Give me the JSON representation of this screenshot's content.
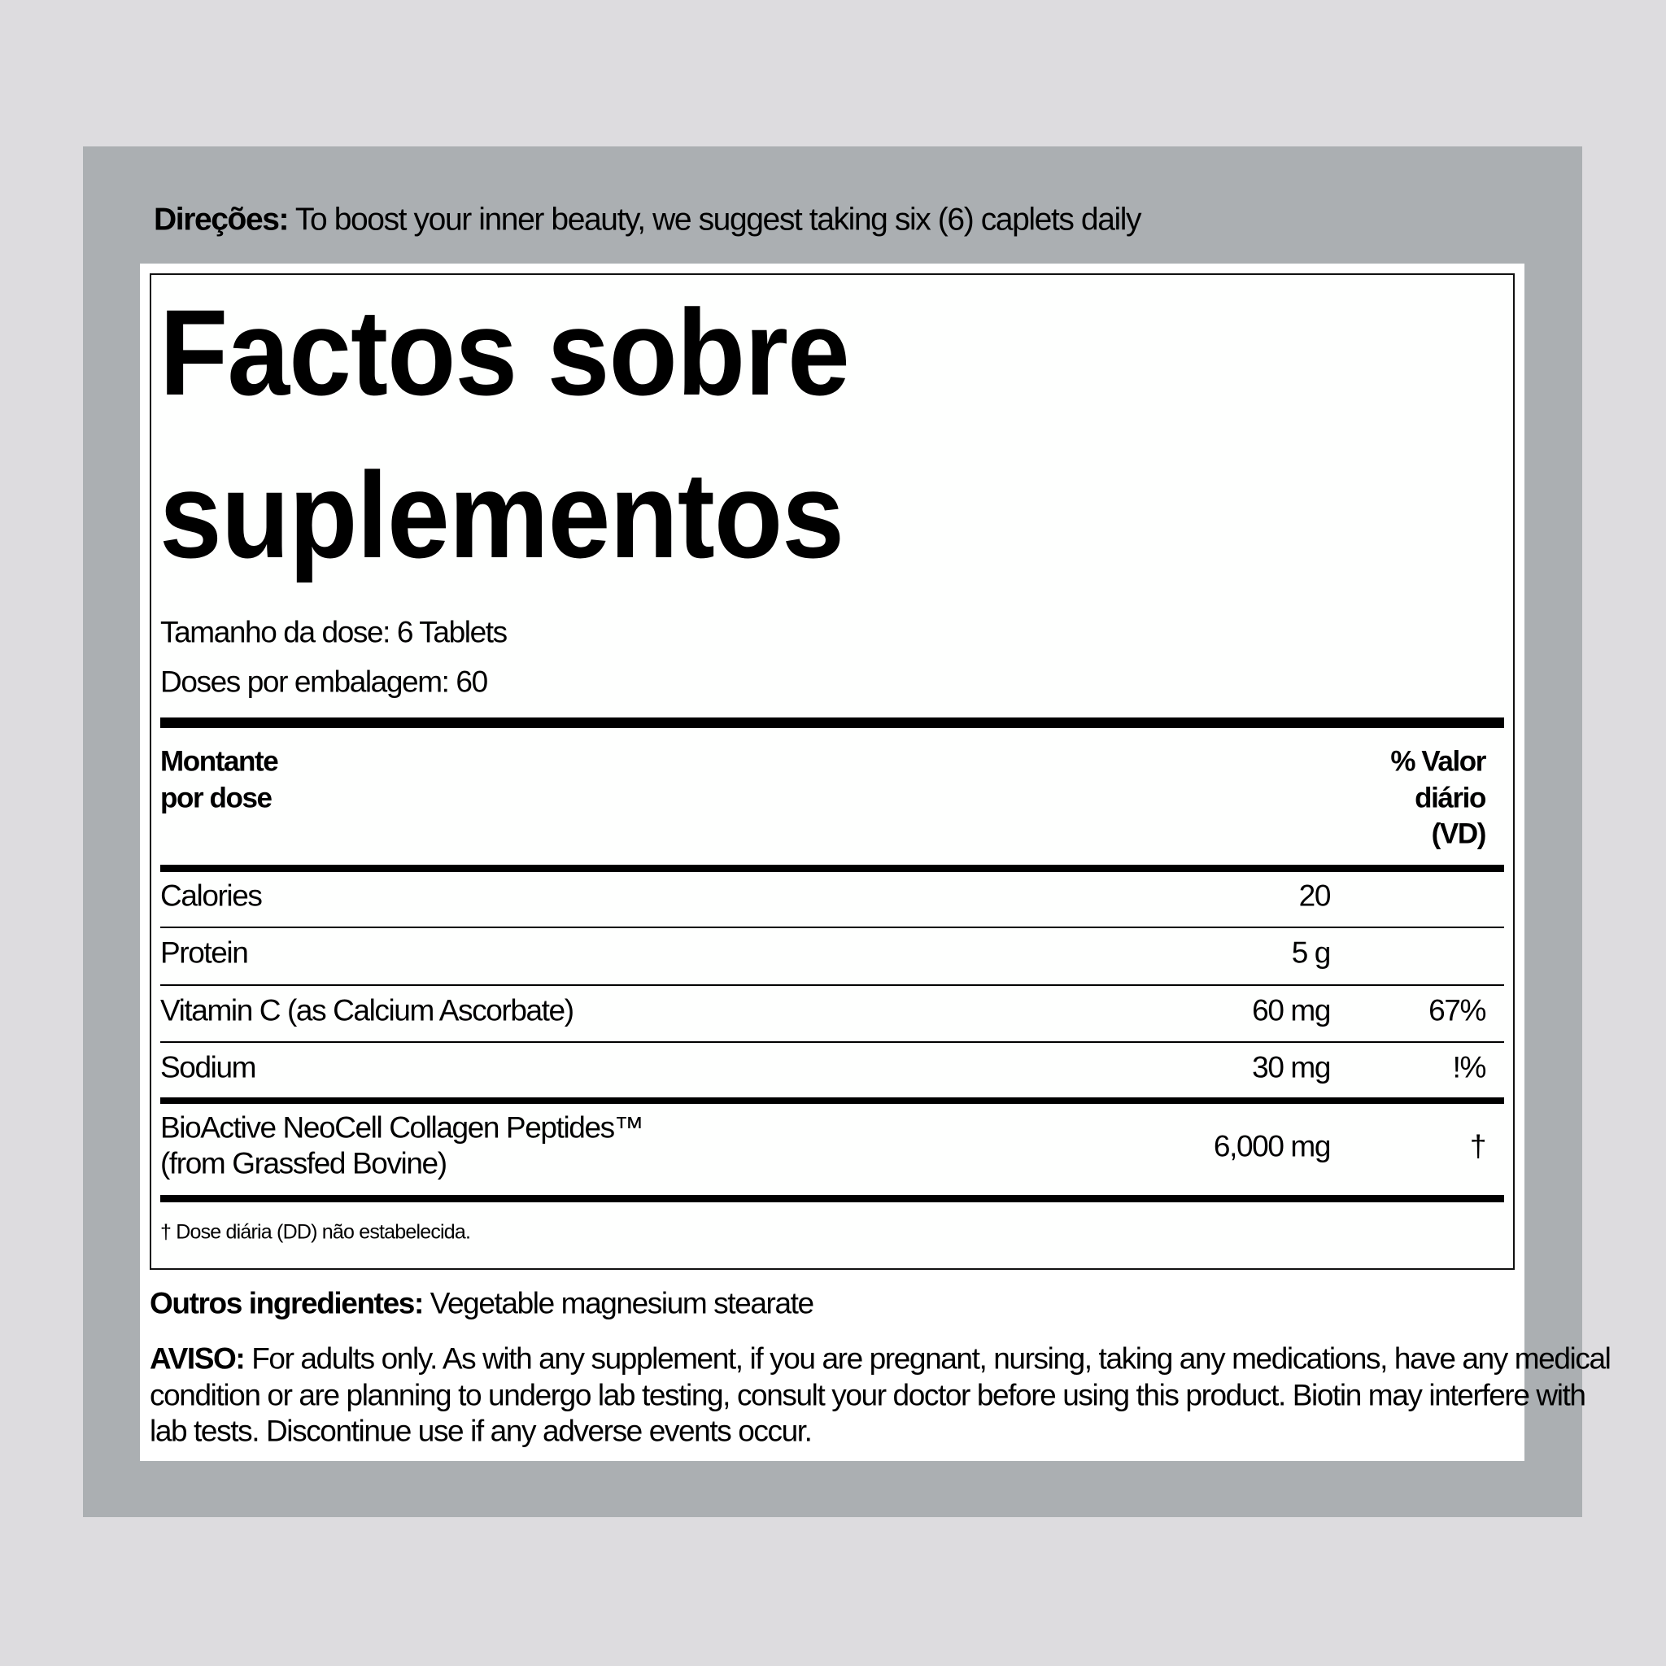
{
  "directions": {
    "label": "Direções:",
    "text": " To boost your inner beauty, we suggest taking six (6) caplets daily"
  },
  "facts": {
    "title_line1": "Factos sobre",
    "title_line2": "suplementos",
    "serving_size": "Tamanho da dose: 6 Tablets",
    "servings_per_container": "Doses por embalagem: 60",
    "header_amount_line1": "Montante",
    "header_amount_line2": "por dose",
    "header_dv_line1": "% Valor",
    "header_dv_line2": "diário",
    "header_dv_line3": "(VD)",
    "rows": [
      {
        "name": "Calories",
        "amount": "20",
        "dv": ""
      },
      {
        "name": "Protein",
        "amount": "5 g",
        "dv": ""
      },
      {
        "name": "Vitamin C (as Calcium Ascorbate)",
        "amount": "60 mg",
        "dv": "67%"
      },
      {
        "name": "Sodium",
        "amount": "30 mg",
        "dv": "!%"
      },
      {
        "name_line1": "BioActive NeoCell Collagen Peptides™",
        "name_line2": "(from Grassfed Bovine)",
        "amount": "6,000 mg",
        "dv": "†"
      }
    ],
    "footnote": "† Dose diária (DD) não estabelecida."
  },
  "other_ingredients": {
    "label": "Outros ingredientes:",
    "text": " Vegetable magnesium stearate"
  },
  "warning": {
    "label": "AVISO:",
    "line1": " For adults only. As with any supplement, if you are pregnant, nursing, taking any medications, have any medical",
    "line2": "condition or are planning to undergo lab testing, consult your doctor before using this product. Biotin may interfere with",
    "line3": "lab tests. Discontinue use if any adverse events occur."
  },
  "colors": {
    "background": "#dddcdf",
    "frame": "#abafb2",
    "panel": "#ffffff",
    "ink": "#000000"
  }
}
